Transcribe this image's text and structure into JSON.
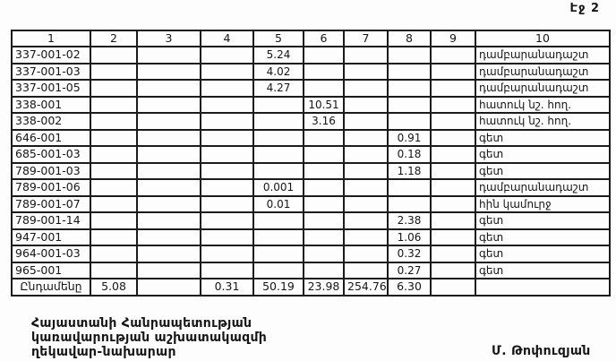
{
  "page": {
    "page_label": "Էջ 2"
  },
  "table": {
    "headers": [
      "1",
      "2",
      "3",
      "4",
      "5",
      "6",
      "7",
      "8",
      "9",
      "10"
    ],
    "rows": [
      [
        "337-001-02",
        "",
        "",
        "",
        "5.24",
        "",
        "",
        "",
        "",
        "դամբարանադաշտ"
      ],
      [
        "337-001-03",
        "",
        "",
        "",
        "4.02",
        "",
        "",
        "",
        "",
        "դամբարանադաշտ"
      ],
      [
        "337-001-05",
        "",
        "",
        "",
        "4.27",
        "",
        "",
        "",
        "",
        "դամբարանադաշտ"
      ],
      [
        "338-001",
        "",
        "",
        "",
        "",
        "10.51",
        "",
        "",
        "",
        "հատուկ նշ. հող."
      ],
      [
        "338-002",
        "",
        "",
        "",
        "",
        "3.16",
        "",
        "",
        "",
        "հատուկ նշ. հող."
      ],
      [
        "646-001",
        "",
        "",
        "",
        "",
        "",
        "",
        "0.91",
        "",
        "գետ"
      ],
      [
        "685-001-03",
        "",
        "",
        "",
        "",
        "",
        "",
        "0.18",
        "",
        "գետ"
      ],
      [
        "789-001-03",
        "",
        "",
        "",
        "",
        "",
        "",
        "1.18",
        "",
        "գետ"
      ],
      [
        "789-001-06",
        "",
        "",
        "",
        "0.001",
        "",
        "",
        "",
        "",
        "դամբարանադաշտ"
      ],
      [
        "789-001-07",
        "",
        "",
        "",
        "0.01",
        "",
        "",
        "",
        "",
        "հին կամուրջ"
      ],
      [
        "789-001-14",
        "",
        "",
        "",
        "",
        "",
        "",
        "2.38",
        "",
        "գետ"
      ],
      [
        "947-001",
        "",
        "",
        "",
        "",
        "",
        "",
        "1.06",
        "",
        "գետ"
      ],
      [
        "964-001-03",
        "",
        "",
        "",
        "",
        "",
        "",
        "0.32",
        "",
        "գետ"
      ],
      [
        "965-001",
        "",
        "",
        "",
        "",
        "",
        "",
        "0.27",
        "",
        "գետ"
      ]
    ],
    "total_row": [
      "Ընդամենը",
      "5.08",
      "",
      "0.31",
      "50.19",
      "23.98",
      "254.76",
      "6.30",
      "",
      ""
    ]
  },
  "footer": {
    "official_title_lines": [
      "Հայաստանի Հանրապետության",
      "կառավարության աշխատակազմի",
      "ղեկավար-նախարար"
    ],
    "signature_name": "Մ. Թոփուզյան"
  }
}
